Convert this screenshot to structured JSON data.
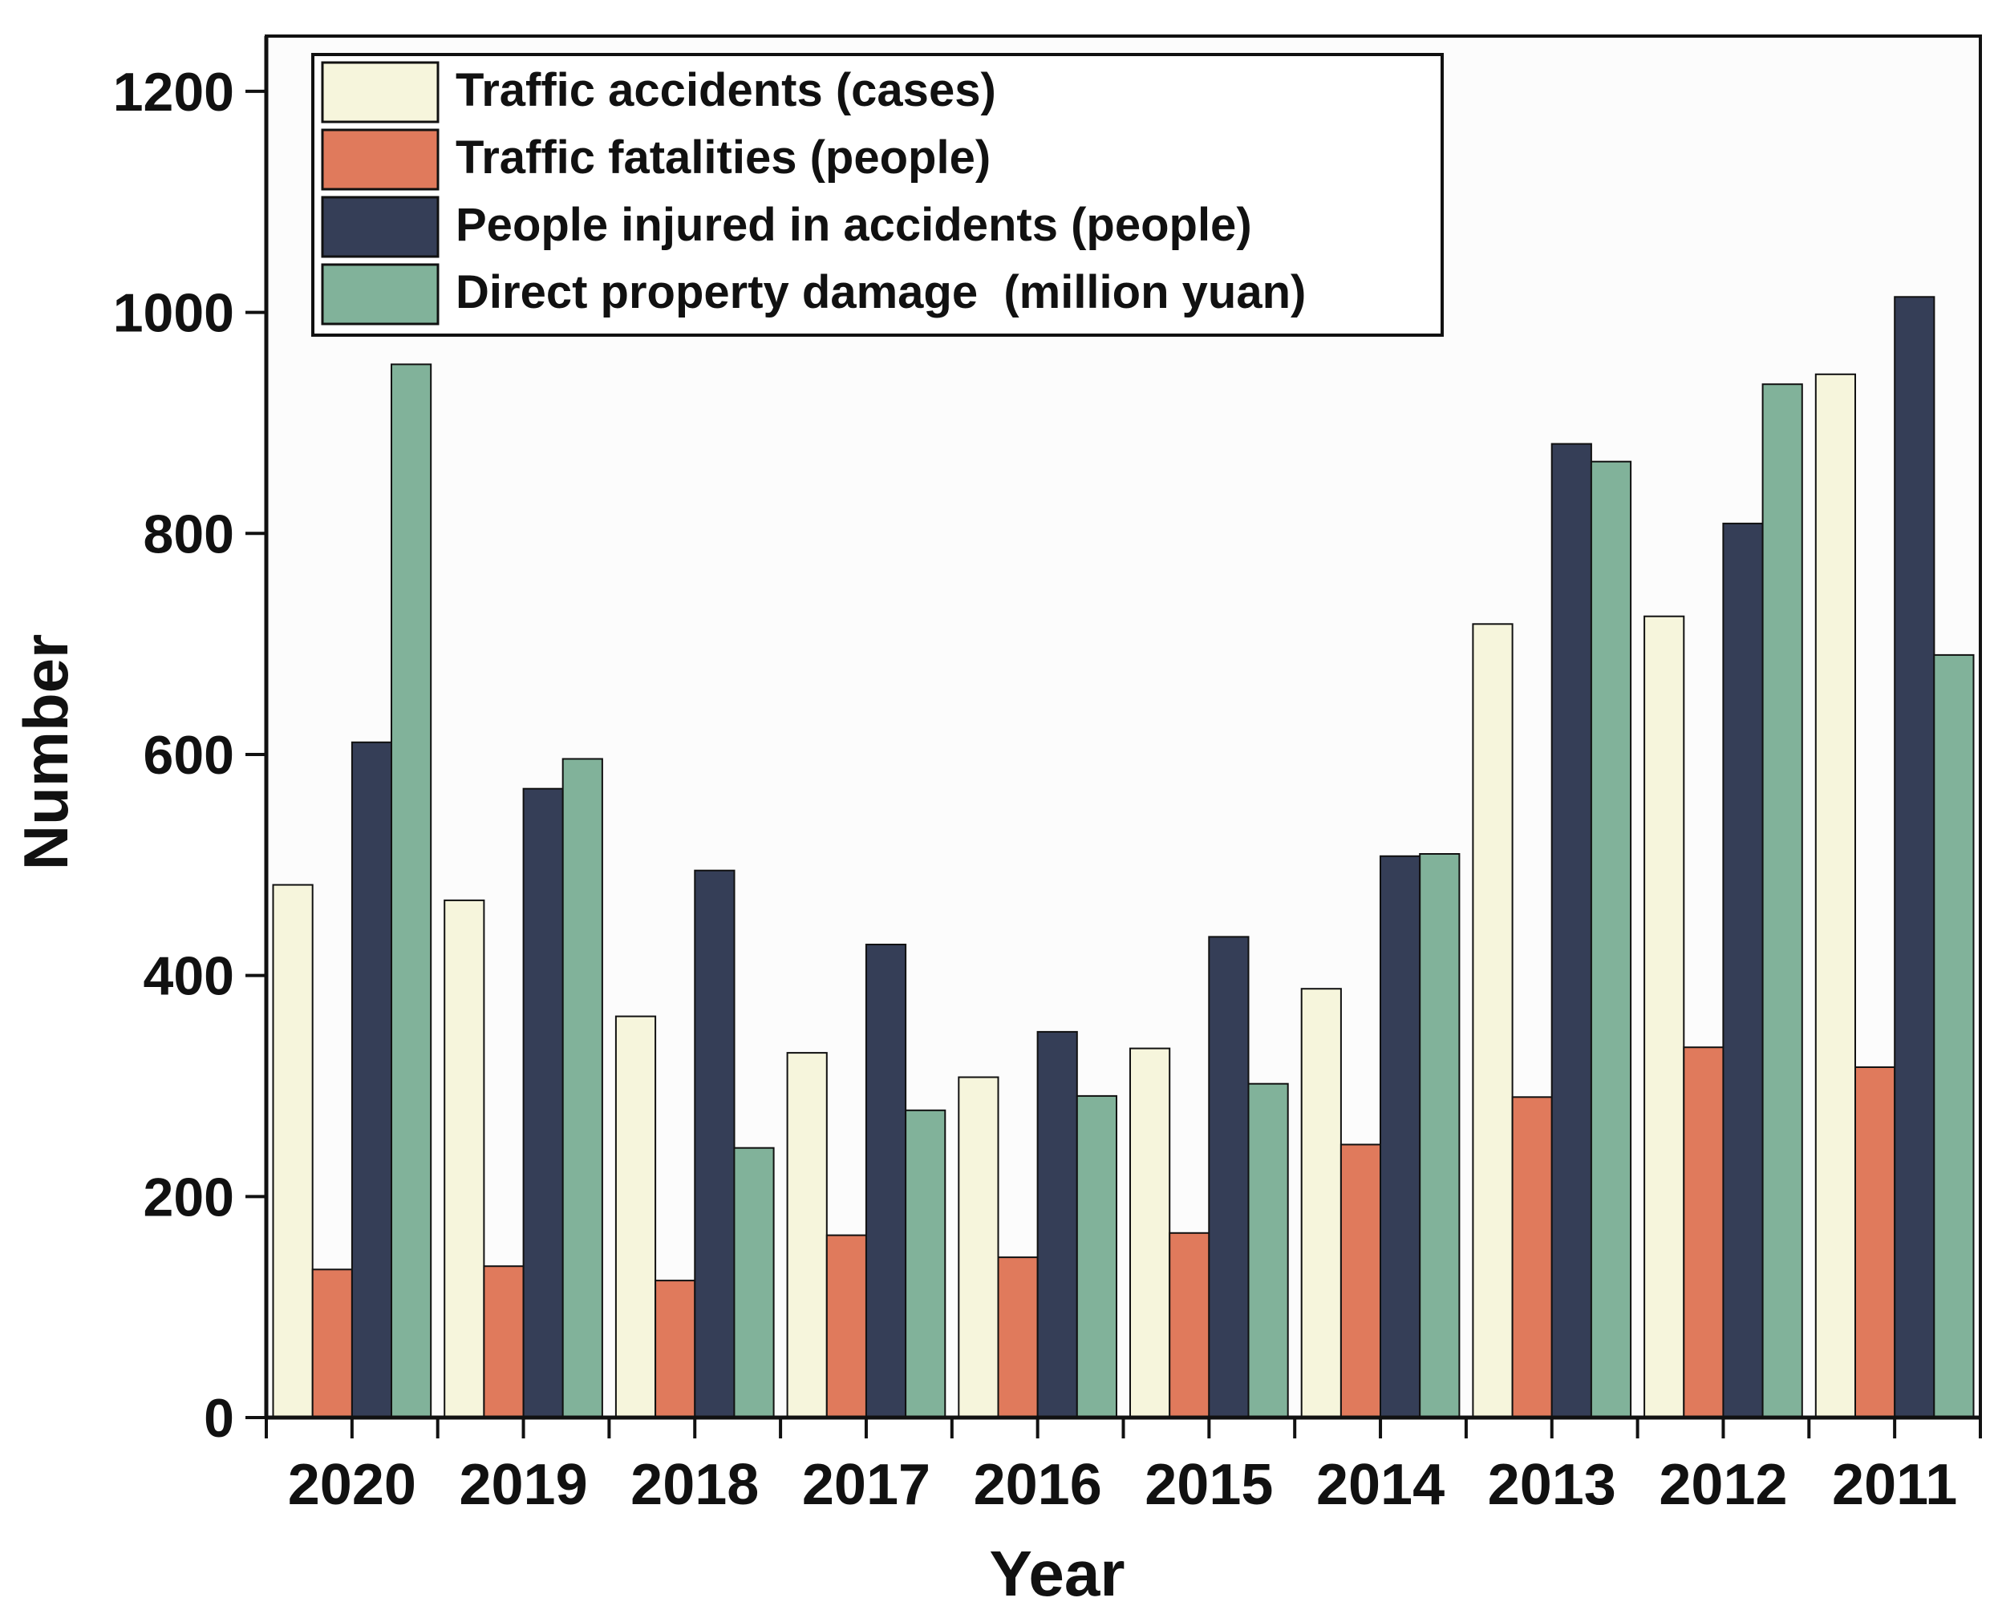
{
  "chart_data": {
    "type": "bar",
    "title": "",
    "xlabel": "Year",
    "ylabel": "Number",
    "ylim": [
      0,
      1250
    ],
    "yticks": [
      0,
      200,
      400,
      600,
      800,
      1000,
      1200
    ],
    "grid": false,
    "legend_position": "top-left",
    "categories": [
      "2020",
      "2019",
      "2018",
      "2017",
      "2016",
      "2015",
      "2014",
      "2013",
      "2012",
      "2011"
    ],
    "series": [
      {
        "name": "Traffic accidents (cases)",
        "color": "#f6f5dc",
        "values": [
          482,
          468,
          363,
          330,
          308,
          334,
          388,
          718,
          725,
          944
        ]
      },
      {
        "name": "Traffic fatalities (people)",
        "color": "#e07a5c",
        "values": [
          134,
          137,
          124,
          165,
          145,
          167,
          247,
          290,
          335,
          317
        ]
      },
      {
        "name": "People injured in accidents (people)",
        "color": "#353e57",
        "values": [
          611,
          569,
          495,
          428,
          349,
          435,
          508,
          881,
          809,
          1014
        ]
      },
      {
        "name": "Direct property damage  (million yuan)",
        "color": "#81b29a",
        "values": [
          953,
          596,
          244,
          278,
          291,
          302,
          510,
          865,
          935,
          690
        ]
      }
    ]
  }
}
